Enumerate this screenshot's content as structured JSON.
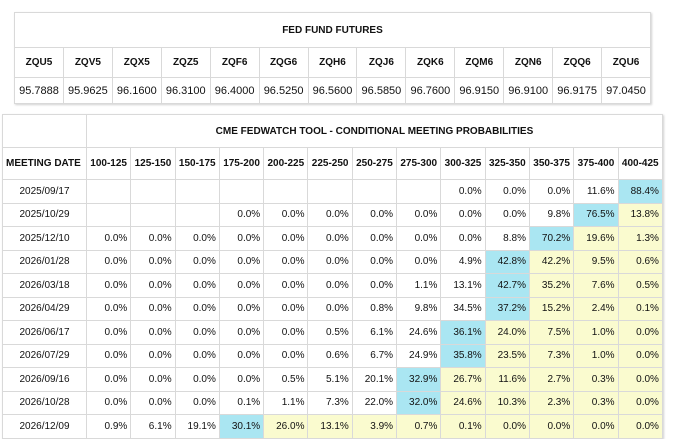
{
  "futures": {
    "title": "FED FUND FUTURES",
    "symbols": [
      "ZQU5",
      "ZQV5",
      "ZQX5",
      "ZQZ5",
      "ZQF6",
      "ZQG6",
      "ZQH6",
      "ZQJ6",
      "ZQK6",
      "ZQM6",
      "ZQN6",
      "ZQQ6",
      "ZQU6"
    ],
    "prices": [
      "95.7888",
      "95.9625",
      "96.1600",
      "96.3100",
      "96.4000",
      "96.5250",
      "96.5600",
      "96.5850",
      "96.7600",
      "96.9150",
      "96.9100",
      "96.9175",
      "97.0450"
    ]
  },
  "fedwatch": {
    "title": "CME FEDWATCH TOOL - CONDITIONAL MEETING PROBABILITIES",
    "meeting_date_label": "MEETING DATE",
    "ranges": [
      "100-125",
      "125-150",
      "150-175",
      "175-200",
      "200-225",
      "225-250",
      "250-275",
      "275-300",
      "300-325",
      "325-350",
      "350-375",
      "375-400",
      "400-425"
    ],
    "colors": {
      "highlight": "#aae6f2",
      "tint": "#fafbcf"
    },
    "rows": [
      {
        "date": "2025/09/17",
        "cells": [
          "",
          "",
          "",
          "",
          "",
          "",
          "",
          "",
          "0.0%",
          "0.0%",
          "0.0%",
          "11.6%",
          "88.4%"
        ]
      },
      {
        "date": "2025/10/29",
        "cells": [
          "",
          "",
          "",
          "0.0%",
          "0.0%",
          "0.0%",
          "0.0%",
          "0.0%",
          "0.0%",
          "0.0%",
          "9.8%",
          "76.5%",
          "13.8%"
        ]
      },
      {
        "date": "2025/12/10",
        "cells": [
          "0.0%",
          "0.0%",
          "0.0%",
          "0.0%",
          "0.0%",
          "0.0%",
          "0.0%",
          "0.0%",
          "0.0%",
          "8.8%",
          "70.2%",
          "19.6%",
          "1.3%"
        ]
      },
      {
        "date": "2026/01/28",
        "cells": [
          "0.0%",
          "0.0%",
          "0.0%",
          "0.0%",
          "0.0%",
          "0.0%",
          "0.0%",
          "0.0%",
          "4.9%",
          "42.8%",
          "42.2%",
          "9.5%",
          "0.6%"
        ]
      },
      {
        "date": "2026/03/18",
        "cells": [
          "0.0%",
          "0.0%",
          "0.0%",
          "0.0%",
          "0.0%",
          "0.0%",
          "0.0%",
          "1.1%",
          "13.1%",
          "42.7%",
          "35.2%",
          "7.6%",
          "0.5%"
        ]
      },
      {
        "date": "2026/04/29",
        "cells": [
          "0.0%",
          "0.0%",
          "0.0%",
          "0.0%",
          "0.0%",
          "0.0%",
          "0.8%",
          "9.8%",
          "34.5%",
          "37.2%",
          "15.2%",
          "2.4%",
          "0.1%"
        ]
      },
      {
        "date": "2026/06/17",
        "cells": [
          "0.0%",
          "0.0%",
          "0.0%",
          "0.0%",
          "0.0%",
          "0.5%",
          "6.1%",
          "24.6%",
          "36.1%",
          "24.0%",
          "7.5%",
          "1.0%",
          "0.0%"
        ]
      },
      {
        "date": "2026/07/29",
        "cells": [
          "0.0%",
          "0.0%",
          "0.0%",
          "0.0%",
          "0.0%",
          "0.6%",
          "6.7%",
          "24.9%",
          "35.8%",
          "23.5%",
          "7.3%",
          "1.0%",
          "0.0%"
        ]
      },
      {
        "date": "2026/09/16",
        "cells": [
          "0.0%",
          "0.0%",
          "0.0%",
          "0.0%",
          "0.5%",
          "5.1%",
          "20.1%",
          "32.9%",
          "26.7%",
          "11.6%",
          "2.7%",
          "0.3%",
          "0.0%"
        ]
      },
      {
        "date": "2026/10/28",
        "cells": [
          "0.0%",
          "0.0%",
          "0.0%",
          "0.1%",
          "1.1%",
          "7.3%",
          "22.0%",
          "32.0%",
          "24.6%",
          "10.3%",
          "2.3%",
          "0.3%",
          "0.0%"
        ]
      },
      {
        "date": "2026/12/09",
        "cells": [
          "0.9%",
          "6.1%",
          "19.1%",
          "30.1%",
          "26.0%",
          "13.1%",
          "3.9%",
          "0.7%",
          "0.1%",
          "0.0%",
          "0.0%",
          "0.0%",
          "0.0%"
        ]
      }
    ],
    "tints": [
      "------------c",
      "-----------cy",
      "----------cyy",
      "---------cyyy",
      "---------cyyy",
      "---------cyyy",
      "--------cyyyy",
      "--------cyyyy",
      "-------cyyyyy",
      "-------cyyyyy",
      "---cyyyyyyyyy"
    ]
  }
}
